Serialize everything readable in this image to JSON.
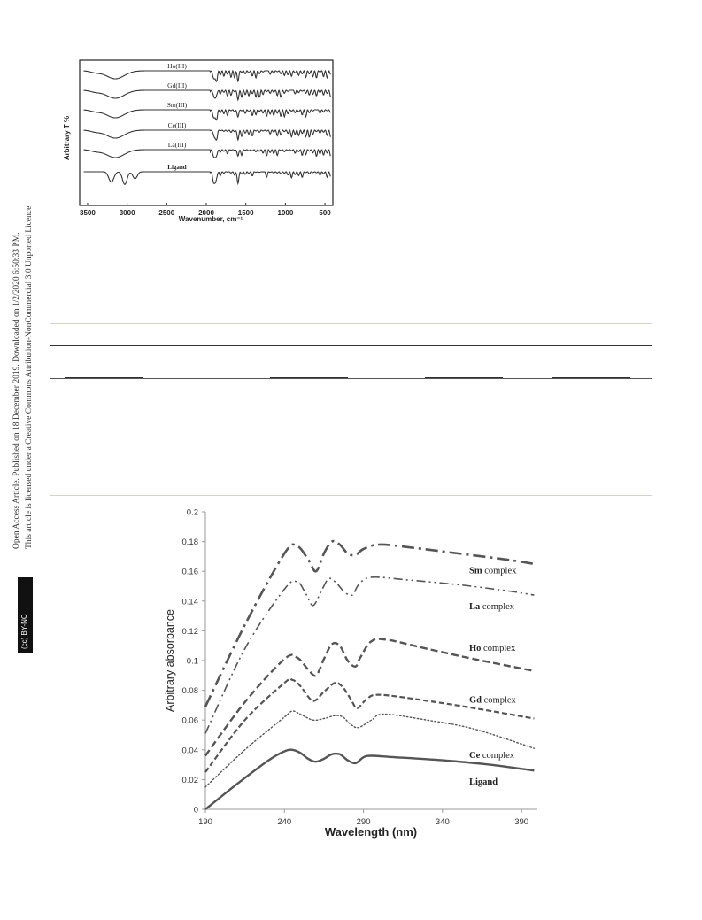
{
  "side_notes": {
    "line1": "Open Access Article. Published on 18 December 2019. Downloaded on 1/2/2020 6:50:33 PM.",
    "line2": "This article is licensed under a Creative Commons Attribution-NonCommercial 3.0 Unported Licence.",
    "badge": "(cc) BY-NC"
  },
  "chart_data": [
    {
      "type": "line",
      "xlabel": "Wavenumber, cm⁻¹",
      "ylabel": "Arbitrary T %",
      "x_ticks": [
        3500,
        3000,
        2500,
        2000,
        1500,
        1000,
        500
      ],
      "xlim": [
        3600,
        400
      ],
      "x_reversed": true,
      "series": [
        {
          "name": "Ho(III)"
        },
        {
          "name": "Gd(III)"
        },
        {
          "name": "Sm(III)"
        },
        {
          "name": "Ce(III)"
        },
        {
          "name": "La(III)"
        },
        {
          "name": "Ligand"
        }
      ]
    },
    {
      "type": "line",
      "xlabel": "Wavelength (nm)",
      "ylabel": "Arbitrary absorbance",
      "xlim": [
        190,
        400
      ],
      "ylim": [
        0,
        0.2
      ],
      "x_ticks": [
        190,
        240,
        290,
        340,
        390
      ],
      "y_ticks": [
        "0",
        "0.02",
        "0.04",
        "0.06",
        "0.08",
        "0.1",
        "0.12",
        "0.14",
        "0.16",
        "0.18",
        "0.2"
      ],
      "series": [
        {
          "name": "Sm complex",
          "label_bold": "Sm",
          "label_rest": " complex",
          "style": "dashdot",
          "x": [
            190,
            215,
            240,
            248,
            255,
            260,
            265,
            270,
            275,
            280,
            285,
            290,
            300,
            320,
            350,
            380,
            398
          ],
          "y": [
            0.069,
            0.124,
            0.172,
            0.177,
            0.168,
            0.16,
            0.172,
            0.18,
            0.178,
            0.172,
            0.171,
            0.175,
            0.178,
            0.176,
            0.172,
            0.168,
            0.165
          ]
        },
        {
          "name": "La complex",
          "label_bold": "La",
          "label_rest": " complex",
          "style": "dashdotdot",
          "x": [
            190,
            215,
            240,
            248,
            253,
            258,
            263,
            268,
            273,
            278,
            283,
            287,
            295,
            320,
            350,
            380,
            398
          ],
          "y": [
            0.051,
            0.108,
            0.148,
            0.153,
            0.146,
            0.137,
            0.146,
            0.155,
            0.152,
            0.146,
            0.144,
            0.151,
            0.156,
            0.154,
            0.151,
            0.147,
            0.144
          ]
        },
        {
          "name": "Ho complex",
          "label_bold": "Ho",
          "label_rest": " complex",
          "style": "dash",
          "x": [
            190,
            215,
            240,
            248,
            255,
            260,
            265,
            270,
            275,
            280,
            285,
            288,
            295,
            305,
            330,
            360,
            398
          ],
          "y": [
            0.036,
            0.072,
            0.101,
            0.102,
            0.094,
            0.09,
            0.101,
            0.111,
            0.11,
            0.1,
            0.096,
            0.102,
            0.113,
            0.114,
            0.108,
            0.101,
            0.093
          ]
        },
        {
          "name": "Gd complex",
          "label_bold": "Gd",
          "label_rest": " complex",
          "style": "shortdash",
          "x": [
            190,
            215,
            240,
            245,
            250,
            258,
            265,
            272,
            277,
            282,
            286,
            292,
            300,
            330,
            360,
            398
          ],
          "y": [
            0.025,
            0.06,
            0.085,
            0.087,
            0.083,
            0.073,
            0.079,
            0.085,
            0.082,
            0.074,
            0.068,
            0.074,
            0.077,
            0.073,
            0.068,
            0.061
          ]
        },
        {
          "name": "Ce complex",
          "label_bold": "Ce",
          "label_rest": " complex",
          "style": "dotted",
          "x": [
            190,
            215,
            240,
            245,
            250,
            258,
            265,
            272,
            277,
            282,
            287,
            295,
            303,
            330,
            360,
            398
          ],
          "y": [
            0.015,
            0.04,
            0.062,
            0.066,
            0.064,
            0.06,
            0.061,
            0.063,
            0.062,
            0.057,
            0.055,
            0.06,
            0.064,
            0.06,
            0.054,
            0.041
          ]
        },
        {
          "name": "Ligand",
          "label_bold": "Ligand",
          "label_rest": "",
          "style": "solid",
          "x": [
            190,
            210,
            230,
            240,
            245,
            250,
            255,
            260,
            265,
            270,
            275,
            280,
            285,
            290,
            295,
            310,
            340,
            370,
            398
          ],
          "y": [
            0.0,
            0.017,
            0.033,
            0.039,
            0.04,
            0.038,
            0.034,
            0.032,
            0.034,
            0.037,
            0.037,
            0.033,
            0.031,
            0.035,
            0.036,
            0.035,
            0.033,
            0.03,
            0.026
          ]
        }
      ]
    }
  ]
}
